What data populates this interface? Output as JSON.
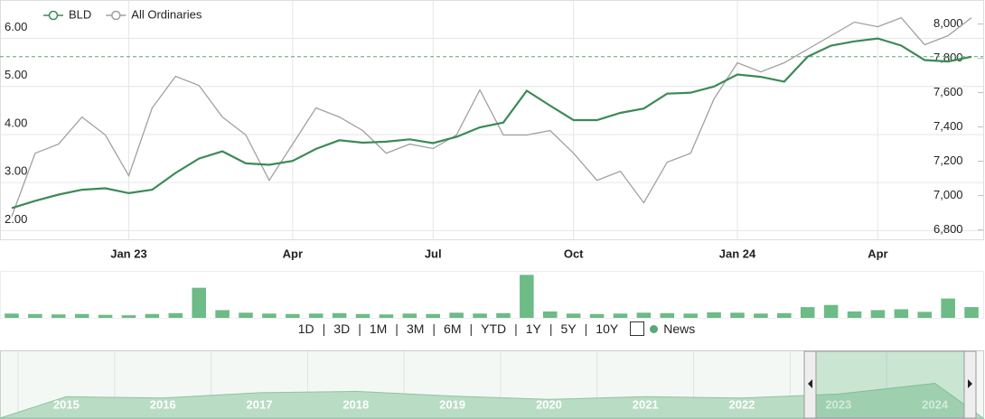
{
  "chart_data": [
    {
      "type": "line",
      "categories": [
        null,
        null,
        null,
        null,
        null,
        "Jan 23",
        null,
        null,
        null,
        null,
        null,
        null,
        "Apr",
        null,
        null,
        null,
        null,
        null,
        "Jul",
        null,
        null,
        null,
        null,
        null,
        "Oct",
        null,
        null,
        null,
        null,
        null,
        null,
        "Jan 24",
        null,
        null,
        null,
        null,
        null,
        "Apr",
        null,
        null,
        null,
        null
      ],
      "series": [
        {
          "name": "BLD",
          "color": "#3b8a57",
          "values": [
            2.47,
            2.62,
            2.75,
            2.85,
            2.88,
            2.78,
            2.85,
            3.2,
            3.5,
            3.65,
            3.4,
            3.37,
            3.45,
            3.7,
            3.88,
            3.83,
            3.85,
            3.9,
            3.82,
            3.95,
            4.15,
            4.25,
            4.91,
            4.6,
            4.3,
            4.3,
            4.45,
            4.54,
            4.85,
            4.87,
            5.0,
            5.25,
            5.2,
            5.1,
            5.62,
            5.85,
            5.94,
            6.0,
            5.85,
            5.55,
            5.52,
            5.62
          ]
        },
        {
          "name": "All Ordinaries",
          "color": "#a0a0a0",
          "axis": "y2",
          "values": [
            6879,
            7247,
            7300,
            7458,
            7353,
            7116,
            7511,
            7695,
            7642,
            7458,
            7353,
            7089,
            7300,
            7511,
            7458,
            7379,
            7247,
            7300,
            7274,
            7353,
            7616,
            7353,
            7353,
            7379,
            7247,
            7089,
            7142,
            6958,
            7195,
            7247,
            7563,
            7774,
            7721,
            7774,
            7853,
            7932,
            8011,
            7984,
            8037,
            7879,
            7932,
            8037
          ]
        }
      ],
      "ylim": [
        1.8,
        6.8
      ],
      "yticks": [
        {
          "value": 2,
          "label": "2.00"
        },
        {
          "value": 3,
          "label": "3.00"
        },
        {
          "value": 4,
          "label": "4.00"
        },
        {
          "value": 5,
          "label": "5.00"
        },
        {
          "value": 6,
          "label": "6.00"
        }
      ],
      "y2lim": [
        6740,
        8140
      ],
      "y2ticks": [
        {
          "value": 6800,
          "label": "6,800"
        },
        {
          "value": 7000,
          "label": "7,000"
        },
        {
          "value": 7200,
          "label": "7,200"
        },
        {
          "value": 7400,
          "label": "7,400"
        },
        {
          "value": 7600,
          "label": "7,600"
        },
        {
          "value": 7800,
          "label": "7,800"
        },
        {
          "value": 8000,
          "label": "8,000"
        }
      ],
      "reference_line": 5.62,
      "grid": true
    },
    {
      "type": "bar",
      "color": "#6dbb86",
      "values": [
        1.0,
        0.9,
        0.8,
        0.9,
        0.7,
        0.6,
        0.9,
        1.1,
        7.0,
        1.8,
        1.2,
        1.0,
        0.9,
        1.0,
        1.1,
        0.9,
        0.8,
        1.0,
        0.9,
        1.2,
        1.0,
        1.1,
        10.0,
        1.5,
        1.0,
        0.9,
        1.0,
        1.2,
        1.1,
        1.0,
        1.3,
        1.2,
        1.0,
        1.1,
        2.5,
        3.0,
        1.5,
        1.8,
        2.0,
        1.4,
        4.5,
        2.5
      ],
      "ylim": [
        0,
        10.5
      ]
    },
    {
      "type": "area",
      "color": "#b9dcc4",
      "categories": [
        "2015",
        "2016",
        "2017",
        "2018",
        "2019",
        "2020",
        "2021",
        "2022",
        "2023",
        "2024"
      ],
      "values": [
        32,
        30,
        38,
        40,
        33,
        28,
        32,
        30,
        36,
        52
      ],
      "ylim": [
        0,
        100
      ]
    }
  ],
  "range_buttons": [
    "1D",
    "3D",
    "1M",
    "3M",
    "6M",
    "YTD",
    "1Y",
    "5Y",
    "10Y"
  ],
  "news_label": "News"
}
